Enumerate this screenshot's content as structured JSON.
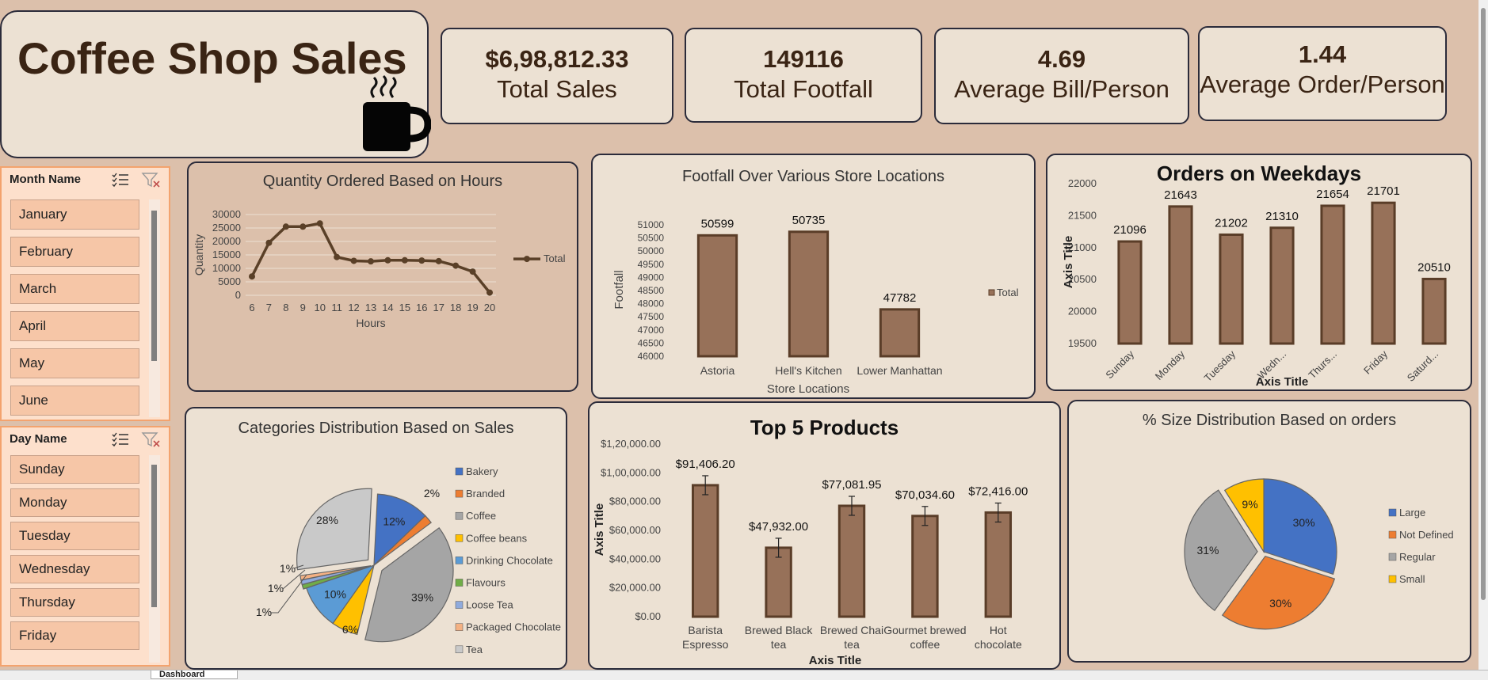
{
  "dashboard": {
    "title": "Coffee Shop Sales",
    "icon": "coffee-cup-icon",
    "kpis": [
      {
        "value": "$6,98,812.33",
        "label": "Total Sales"
      },
      {
        "value": "149116",
        "label": "Total Footfall"
      },
      {
        "value": "4.69",
        "label": "Average Bill/Person"
      },
      {
        "value": "1.44",
        "label": "Average Order/Person"
      }
    ]
  },
  "month_slicer": {
    "header": "Month Name",
    "items": [
      "January",
      "February",
      "March",
      "April",
      "May",
      "June"
    ]
  },
  "day_slicer": {
    "header": "Day Name",
    "items": [
      "Sunday",
      "Monday",
      "Tuesday",
      "Wednesday",
      "Thursday",
      "Friday"
    ]
  },
  "colors": {
    "bar_fill": "#977159",
    "bar_stroke": "#5a3d28",
    "line": "#5a4028",
    "pie": [
      "#4472c4",
      "#ed7d31",
      "#a5a5a5",
      "#ffc000",
      "#5b9bd5",
      "#70ad47",
      "#8faadc",
      "#f4b183",
      "#c9c9c9"
    ]
  },
  "sheet_tab": "Dashboard",
  "chart_data": [
    {
      "type": "line",
      "title": "Quantity Ordered Based on Hours",
      "xlabel": "Hours",
      "ylabel": "Quantity",
      "x": [
        "6",
        "7",
        "8",
        "9",
        "10",
        "11",
        "12",
        "13",
        "14",
        "15",
        "16",
        "17",
        "18",
        "19",
        "20"
      ],
      "series": [
        {
          "name": "Total",
          "values": [
            7000,
            19500,
            25500,
            25500,
            26700,
            14200,
            12800,
            12600,
            13000,
            13000,
            12900,
            12700,
            11000,
            8800,
            1000
          ]
        }
      ],
      "yticks": [
        "0",
        "5000",
        "10000",
        "15000",
        "20000",
        "25000",
        "30000"
      ],
      "ylim": [
        0,
        30000
      ],
      "grid": true,
      "legend": "right"
    },
    {
      "type": "bar",
      "title": "Footfall Over Various Store Locations",
      "xlabel": "Store Locations",
      "ylabel": "Footfall",
      "categories": [
        "Astoria",
        "Hell's Kitchen",
        "Lower Manhattan"
      ],
      "series": [
        {
          "name": "Total",
          "values": [
            50599,
            50735,
            47782
          ]
        }
      ],
      "data_labels": [
        "50599",
        "50735",
        "47782"
      ],
      "yticks": [
        "46000",
        "46500",
        "47000",
        "47500",
        "48000",
        "48500",
        "49000",
        "49500",
        "50000",
        "50500",
        "51000"
      ],
      "ylim": [
        46000,
        51000
      ],
      "legend": "right"
    },
    {
      "type": "bar",
      "title": "Orders on Weekdays",
      "xlabel": "Axis Title",
      "ylabel": "Axis Title",
      "categories": [
        "Sunday",
        "Monday",
        "Tuesday",
        "Wedn...",
        "Thurs...",
        "Friday",
        "Saturd..."
      ],
      "values": [
        21096,
        21643,
        21202,
        21310,
        21654,
        21701,
        20510
      ],
      "data_labels": [
        "21096",
        "21643",
        "21202",
        "21310",
        "21654",
        "21701",
        "20510"
      ],
      "yticks": [
        "19500",
        "20000",
        "20500",
        "21000",
        "21500",
        "22000"
      ],
      "ylim": [
        19500,
        22000
      ]
    },
    {
      "type": "pie",
      "title": "Categories Distribution Based on Sales",
      "categories": [
        "Bakery",
        "Branded",
        "Coffee",
        "Coffee beans",
        "Drinking Chocolate",
        "Flavours",
        "Loose Tea",
        "Packaged Chocolate",
        "Tea"
      ],
      "values": [
        12,
        2,
        39,
        6,
        10,
        1,
        1,
        1,
        28
      ],
      "data_labels": [
        "12%",
        "2%",
        "39%",
        "6%",
        "10%",
        "1%",
        "1%",
        "1%",
        "28%"
      ],
      "legend": "right"
    },
    {
      "type": "bar",
      "title": "Top 5 Products",
      "xlabel": "Axis Title",
      "ylabel": "Axis Title",
      "categories": [
        "Barista Espresso",
        "Brewed Black tea",
        "Brewed Chai tea",
        "Gourmet brewed coffee",
        "Hot chocolate"
      ],
      "values": [
        91406.2,
        47932.0,
        77081.95,
        70034.6,
        72416.0
      ],
      "data_labels": [
        "$91,406.20",
        "$47,932.00",
        "$77,081.95",
        "$70,034.60",
        "$72,416.00"
      ],
      "yticks": [
        "$0.00",
        "$20,000.00",
        "$40,000.00",
        "$60,000.00",
        "$80,000.00",
        "$1,00,000.00",
        "$1,20,000.00"
      ],
      "ylim": [
        0,
        120000
      ],
      "error_bars": true
    },
    {
      "type": "pie",
      "title": "% Size Distribution Based on orders",
      "categories": [
        "Large",
        "Not Defined",
        "Regular",
        "Small"
      ],
      "values": [
        30,
        30,
        31,
        9
      ],
      "data_labels": [
        "30%",
        "30%",
        "31%",
        "9%"
      ],
      "legend": "right"
    }
  ]
}
